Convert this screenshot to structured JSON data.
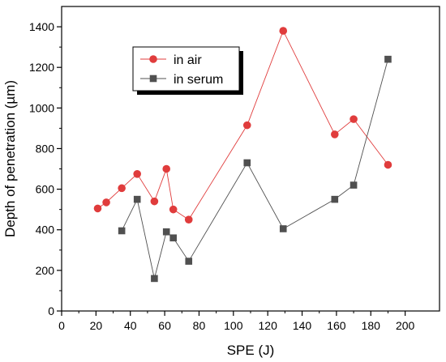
{
  "chart_data": {
    "type": "scatter",
    "xlabel": "SPE (J)",
    "ylabel": "Depth of penetration (µm)",
    "xlim": [
      0,
      220
    ],
    "ylim": [
      0,
      1500
    ],
    "xticks": [
      0,
      20,
      40,
      60,
      80,
      100,
      120,
      140,
      160,
      180,
      200
    ],
    "yticks": [
      0,
      200,
      400,
      600,
      800,
      1000,
      1200,
      1400
    ],
    "legend_position": "top-left",
    "series": [
      {
        "name": "in air",
        "color": "#e03c3c",
        "marker": "circle",
        "x": [
          21,
          26,
          35,
          44,
          54,
          61,
          65,
          74,
          108,
          129,
          159,
          170,
          190
        ],
        "y": [
          505,
          535,
          605,
          675,
          540,
          700,
          500,
          450,
          915,
          1380,
          870,
          945,
          720
        ]
      },
      {
        "name": "in serum",
        "color": "#505050",
        "marker": "square",
        "x": [
          35,
          44,
          54,
          61,
          65,
          74,
          108,
          129,
          159,
          170,
          190
        ],
        "y": [
          395,
          550,
          160,
          390,
          360,
          245,
          730,
          405,
          550,
          620,
          1240
        ]
      }
    ]
  }
}
